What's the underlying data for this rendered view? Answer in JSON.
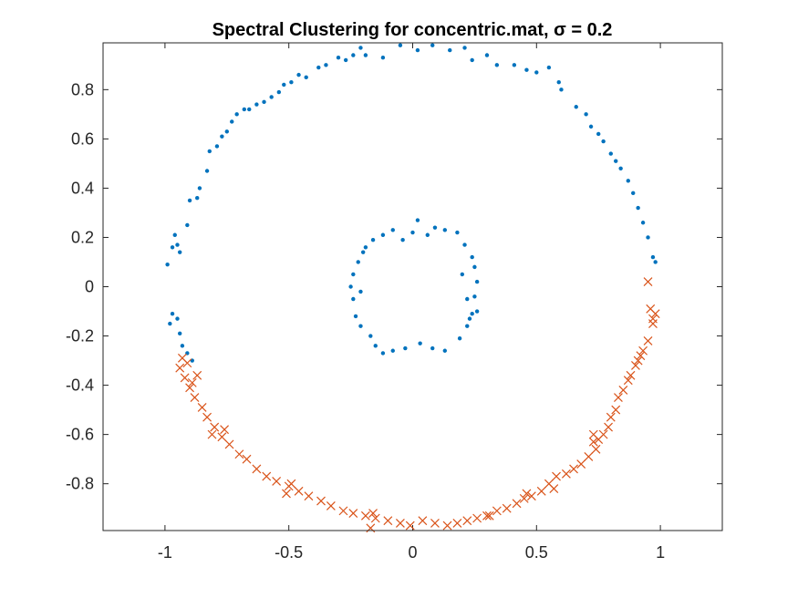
{
  "chart_data": {
    "type": "scatter",
    "title": "Spectral Clustering for concentric.mat, σ = 0.2",
    "xlabel": "",
    "ylabel": "",
    "xlim": [
      -1.25,
      1.25
    ],
    "ylim": [
      -0.99,
      0.99
    ],
    "x_ticks": [
      -1,
      -0.5,
      0,
      0.5,
      1
    ],
    "x_tick_labels": [
      "-1",
      "-0.5",
      "0",
      "0.5",
      "1"
    ],
    "y_ticks": [
      0.8,
      0.6,
      0.4,
      0.2,
      0,
      -0.2,
      -0.4,
      -0.6,
      -0.8
    ],
    "y_tick_labels": [
      "0.8",
      "0.6",
      "0.4",
      "0.2",
      "0",
      "-0.2",
      "-0.4",
      "-0.6",
      "-0.8"
    ],
    "grid": false,
    "legend": "none",
    "colors": {
      "cluster_1": "#0072BD",
      "cluster_2": "#D95319"
    },
    "series": [
      {
        "marker": "dot",
        "color": "#0072BD",
        "points": [
          [
            -0.99,
            0.09
          ],
          [
            -0.97,
            0.16
          ],
          [
            -0.96,
            0.21
          ],
          [
            -0.95,
            0.17
          ],
          [
            -0.94,
            0.14
          ],
          [
            -0.91,
            0.25
          ],
          [
            -0.9,
            0.35
          ],
          [
            -0.87,
            0.36
          ],
          [
            -0.86,
            0.4
          ],
          [
            -0.83,
            0.47
          ],
          [
            -0.82,
            0.55
          ],
          [
            -0.79,
            0.57
          ],
          [
            -0.77,
            0.61
          ],
          [
            -0.75,
            0.63
          ],
          [
            -0.73,
            0.67
          ],
          [
            -0.71,
            0.7
          ],
          [
            -0.68,
            0.72
          ],
          [
            -0.66,
            0.72
          ],
          [
            -0.63,
            0.74
          ],
          [
            -0.6,
            0.75
          ],
          [
            -0.57,
            0.77
          ],
          [
            -0.54,
            0.79
          ],
          [
            -0.52,
            0.82
          ],
          [
            -0.49,
            0.83
          ],
          [
            -0.46,
            0.86
          ],
          [
            -0.43,
            0.85
          ],
          [
            -0.38,
            0.89
          ],
          [
            -0.35,
            0.9
          ],
          [
            -0.3,
            0.93
          ],
          [
            -0.27,
            0.92
          ],
          [
            -0.24,
            0.94
          ],
          [
            -0.21,
            0.97
          ],
          [
            -0.19,
            0.94
          ],
          [
            -0.12,
            0.93
          ],
          [
            -0.05,
            0.98
          ],
          [
            0.02,
            0.96
          ],
          [
            0.08,
            0.98
          ],
          [
            0.15,
            0.96
          ],
          [
            0.21,
            0.97
          ],
          [
            0.24,
            0.92
          ],
          [
            0.3,
            0.94
          ],
          [
            0.34,
            0.9
          ],
          [
            0.41,
            0.9
          ],
          [
            0.46,
            0.88
          ],
          [
            0.5,
            0.87
          ],
          [
            0.55,
            0.89
          ],
          [
            0.59,
            0.83
          ],
          [
            0.6,
            0.8
          ],
          [
            0.66,
            0.73
          ],
          [
            0.7,
            0.7
          ],
          [
            0.72,
            0.65
          ],
          [
            0.75,
            0.62
          ],
          [
            0.77,
            0.59
          ],
          [
            0.8,
            0.54
          ],
          [
            0.82,
            0.51
          ],
          [
            0.84,
            0.48
          ],
          [
            0.87,
            0.43
          ],
          [
            0.89,
            0.38
          ],
          [
            0.91,
            0.32
          ],
          [
            0.93,
            0.26
          ],
          [
            0.95,
            0.2
          ],
          [
            0.97,
            0.12
          ],
          [
            0.98,
            0.1
          ],
          [
            -0.98,
            -0.15
          ],
          [
            -0.97,
            -0.11
          ],
          [
            -0.95,
            -0.13
          ],
          [
            -0.94,
            -0.19
          ],
          [
            -0.93,
            -0.24
          ],
          [
            -0.91,
            -0.27
          ],
          [
            -0.89,
            -0.3
          ],
          [
            0.18,
            0.22
          ],
          [
            0.13,
            0.23
          ],
          [
            0.06,
            0.21
          ],
          [
            0.02,
            0.27
          ],
          [
            0.0,
            0.22
          ],
          [
            -0.04,
            0.19
          ],
          [
            -0.08,
            0.23
          ],
          [
            -0.12,
            0.21
          ],
          [
            -0.16,
            0.19
          ],
          [
            -0.2,
            0.14
          ],
          [
            -0.22,
            0.1
          ],
          [
            -0.24,
            0.05
          ],
          [
            -0.25,
            0.0
          ],
          [
            -0.24,
            -0.05
          ],
          [
            -0.23,
            -0.12
          ],
          [
            -0.21,
            -0.16
          ],
          [
            -0.17,
            -0.2
          ],
          [
            -0.15,
            -0.24
          ],
          [
            -0.12,
            -0.27
          ],
          [
            -0.08,
            -0.26
          ],
          [
            -0.03,
            -0.25
          ],
          [
            0.03,
            -0.23
          ],
          [
            0.08,
            -0.25
          ],
          [
            0.13,
            -0.26
          ],
          [
            0.19,
            -0.21
          ],
          [
            0.22,
            -0.16
          ],
          [
            0.24,
            -0.11
          ],
          [
            0.25,
            -0.04
          ],
          [
            0.26,
            0.02
          ],
          [
            0.25,
            0.08
          ],
          [
            0.24,
            0.12
          ],
          [
            0.21,
            0.17
          ],
          [
            0.09,
            0.24
          ],
          [
            -0.19,
            0.16
          ],
          [
            -0.21,
            -0.02
          ],
          [
            0.23,
            -0.13
          ],
          [
            0.26,
            -0.1
          ],
          [
            0.2,
            0.05
          ],
          [
            0.22,
            -0.05
          ]
        ]
      },
      {
        "marker": "x",
        "color": "#D95319",
        "points": [
          [
            0.95,
            0.02
          ],
          [
            0.96,
            -0.09
          ],
          [
            0.97,
            -0.13
          ],
          [
            0.98,
            -0.11
          ],
          [
            0.97,
            -0.15
          ],
          [
            0.95,
            -0.22
          ],
          [
            0.93,
            -0.26
          ],
          [
            0.92,
            -0.28
          ],
          [
            0.91,
            -0.3
          ],
          [
            0.9,
            -0.32
          ],
          [
            0.88,
            -0.36
          ],
          [
            0.87,
            -0.38
          ],
          [
            0.85,
            -0.42
          ],
          [
            0.83,
            -0.45
          ],
          [
            0.82,
            -0.5
          ],
          [
            0.8,
            -0.53
          ],
          [
            0.79,
            -0.57
          ],
          [
            0.77,
            -0.6
          ],
          [
            0.75,
            -0.62
          ],
          [
            0.73,
            -0.63
          ],
          [
            0.74,
            -0.66
          ],
          [
            0.71,
            -0.69
          ],
          [
            0.68,
            -0.72
          ],
          [
            0.65,
            -0.74
          ],
          [
            0.62,
            -0.76
          ],
          [
            0.58,
            -0.77
          ],
          [
            0.55,
            -0.8
          ],
          [
            0.52,
            -0.83
          ],
          [
            0.48,
            -0.85
          ],
          [
            0.45,
            -0.86
          ],
          [
            0.42,
            -0.88
          ],
          [
            0.38,
            -0.9
          ],
          [
            0.34,
            -0.91
          ],
          [
            0.3,
            -0.93
          ],
          [
            0.26,
            -0.94
          ],
          [
            0.22,
            -0.95
          ],
          [
            0.18,
            -0.96
          ],
          [
            0.14,
            -0.97
          ],
          [
            0.09,
            -0.96
          ],
          [
            0.04,
            -0.95
          ],
          [
            -0.01,
            -0.97
          ],
          [
            -0.05,
            -0.96
          ],
          [
            -0.1,
            -0.95
          ],
          [
            -0.15,
            -0.94
          ],
          [
            -0.19,
            -0.93
          ],
          [
            -0.24,
            -0.92
          ],
          [
            -0.28,
            -0.91
          ],
          [
            -0.33,
            -0.89
          ],
          [
            -0.37,
            -0.87
          ],
          [
            -0.42,
            -0.85
          ],
          [
            -0.46,
            -0.83
          ],
          [
            -0.5,
            -0.81
          ],
          [
            -0.55,
            -0.79
          ],
          [
            -0.59,
            -0.77
          ],
          [
            -0.63,
            -0.74
          ],
          [
            -0.67,
            -0.7
          ],
          [
            -0.7,
            -0.68
          ],
          [
            -0.74,
            -0.64
          ],
          [
            -0.77,
            -0.61
          ],
          [
            -0.8,
            -0.57
          ],
          [
            -0.83,
            -0.53
          ],
          [
            -0.85,
            -0.49
          ],
          [
            -0.88,
            -0.45
          ],
          [
            -0.9,
            -0.41
          ],
          [
            -0.92,
            -0.37
          ],
          [
            -0.94,
            -0.33
          ],
          [
            -0.93,
            -0.29
          ],
          [
            -0.91,
            -0.31
          ],
          [
            -0.89,
            -0.39
          ],
          [
            -0.87,
            -0.36
          ],
          [
            -0.17,
            -0.98
          ],
          [
            -0.16,
            -0.92
          ],
          [
            0.31,
            -0.93
          ],
          [
            0.46,
            -0.84
          ],
          [
            0.57,
            -0.82
          ],
          [
            -0.49,
            -0.8
          ],
          [
            -0.51,
            -0.84
          ],
          [
            -0.76,
            -0.58
          ],
          [
            -0.81,
            -0.6
          ],
          [
            0.73,
            -0.6
          ]
        ]
      }
    ]
  }
}
